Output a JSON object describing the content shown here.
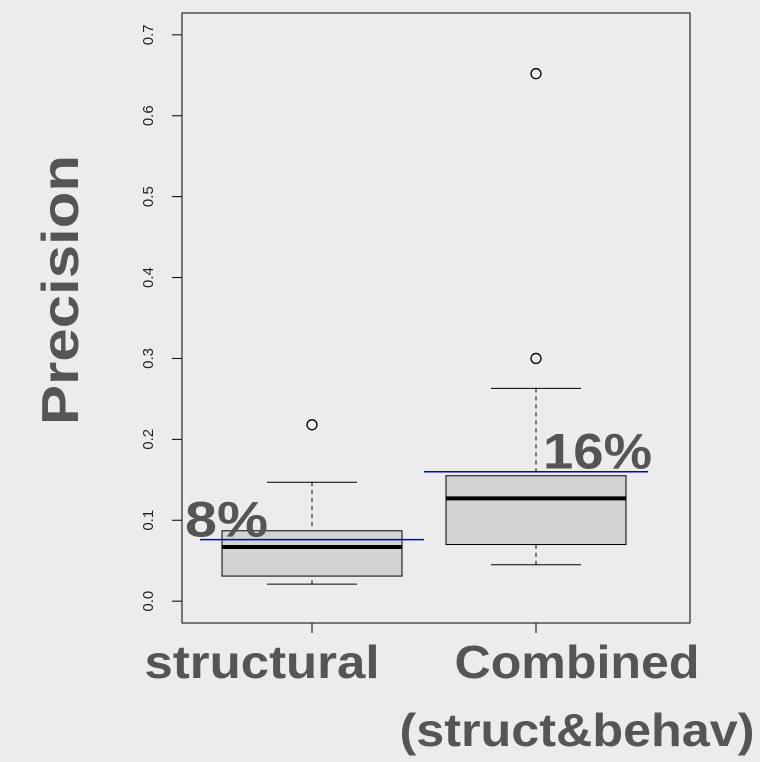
{
  "chart_data": {
    "type": "boxplot",
    "y_label": "Precision",
    "categories": [
      "structural",
      "Combined\n(struct&behav)"
    ],
    "boxes": [
      {
        "low": 0.021,
        "q1": 0.031,
        "median": 0.067,
        "q3": 0.087,
        "high": 0.147,
        "outliers": [
          0.218
        ]
      },
      {
        "low": 0.045,
        "q1": 0.07,
        "median": 0.127,
        "q3": 0.155,
        "high": 0.263,
        "outliers": [
          0.3,
          0.652
        ]
      }
    ],
    "box_color": "#d3d3d3",
    "means": {
      "values": [
        0.076,
        0.16
      ],
      "value_labels": [
        "8%",
        "16%"
      ],
      "color": "#0000cc"
    },
    "ylim": [
      -0.027,
      0.727
    ],
    "yticks": [
      {
        "value": 0,
        "label": "0.0"
      },
      0.1,
      0.2,
      0.3,
      0.4,
      0.5,
      0.6,
      0.7
    ]
  }
}
